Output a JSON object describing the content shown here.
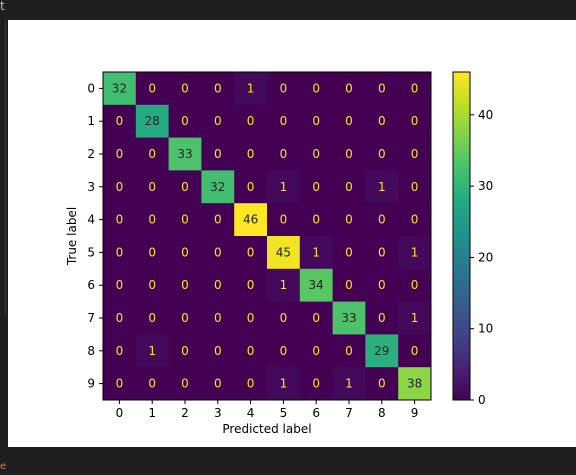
{
  "window": {
    "corner_glyph": "t",
    "bottom_glyph": "e"
  },
  "chart_data": {
    "type": "heatmap",
    "title": "",
    "xlabel": "Predicted label",
    "ylabel": "True label",
    "x_categories": [
      "0",
      "1",
      "2",
      "3",
      "4",
      "5",
      "6",
      "7",
      "8",
      "9"
    ],
    "y_categories": [
      "0",
      "1",
      "2",
      "3",
      "4",
      "5",
      "6",
      "7",
      "8",
      "9"
    ],
    "matrix": [
      [
        32,
        0,
        0,
        0,
        1,
        0,
        0,
        0,
        0,
        0
      ],
      [
        0,
        28,
        0,
        0,
        0,
        0,
        0,
        0,
        0,
        0
      ],
      [
        0,
        0,
        33,
        0,
        0,
        0,
        0,
        0,
        0,
        0
      ],
      [
        0,
        0,
        0,
        32,
        0,
        1,
        0,
        0,
        1,
        0
      ],
      [
        0,
        0,
        0,
        0,
        46,
        0,
        0,
        0,
        0,
        0
      ],
      [
        0,
        0,
        0,
        0,
        0,
        45,
        1,
        0,
        0,
        1
      ],
      [
        0,
        0,
        0,
        0,
        0,
        1,
        34,
        0,
        0,
        0
      ],
      [
        0,
        0,
        0,
        0,
        0,
        0,
        0,
        33,
        0,
        1
      ],
      [
        0,
        1,
        0,
        0,
        0,
        0,
        0,
        0,
        29,
        0
      ],
      [
        0,
        0,
        0,
        0,
        0,
        1,
        0,
        1,
        0,
        38
      ]
    ],
    "colormap": "viridis",
    "value_range": [
      0,
      46
    ],
    "colorbar_ticks": [
      0,
      10,
      20,
      30,
      40
    ],
    "grid": false,
    "legend": "colorbar-right"
  }
}
